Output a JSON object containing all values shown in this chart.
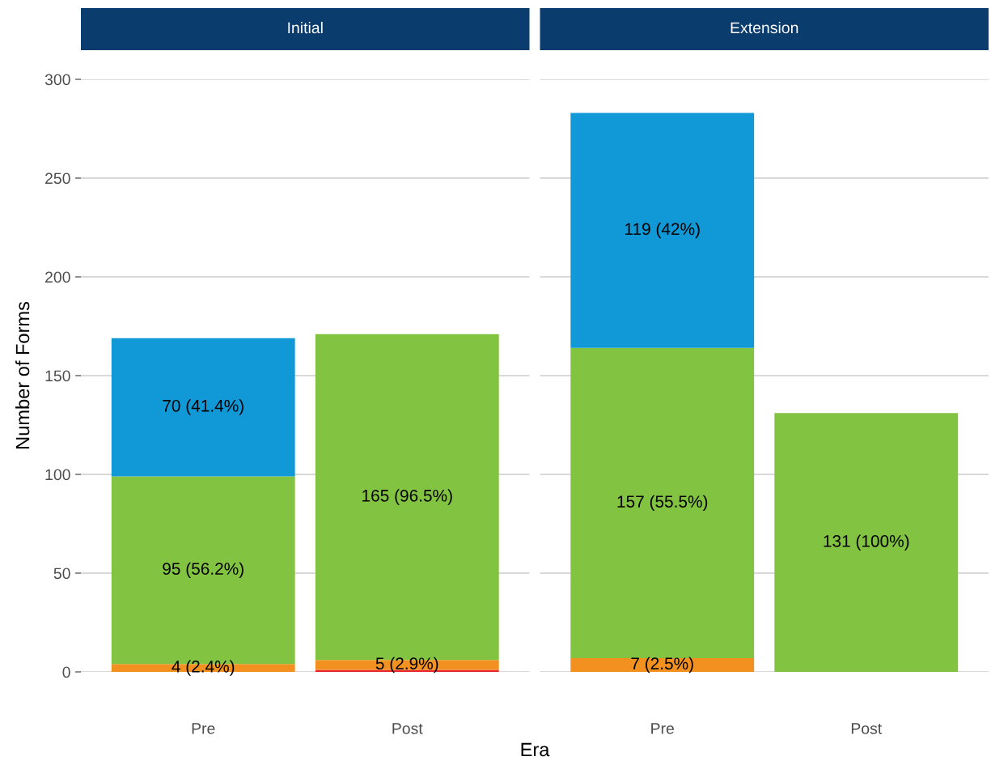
{
  "chart_data": [
    {
      "type": "bar",
      "title": "Initial",
      "ylabel": "Number of Forms",
      "xlabel": "Era",
      "categories": [
        "Pre",
        "Post"
      ],
      "stacked": true,
      "ylim": [
        0,
        300
      ],
      "yticks": [
        0,
        50,
        100,
        150,
        200,
        250,
        300
      ],
      "grid": "y",
      "legend": false,
      "series": [
        {
          "color": "#e8262b",
          "values": [
            null,
            1
          ],
          "value_labels": [
            null,
            null
          ]
        },
        {
          "color": "#f39120",
          "values": [
            4,
            5
          ],
          "value_labels": [
            "4 (2.4%)",
            "5 (2.9%)"
          ]
        },
        {
          "color": "#82c341",
          "values": [
            95,
            165
          ],
          "value_labels": [
            "95 (56.2%)",
            "165 (96.5%)"
          ]
        },
        {
          "color": "#1198d6",
          "values": [
            70,
            null
          ],
          "value_labels": [
            "70 (41.4%)",
            null
          ]
        }
      ]
    },
    {
      "type": "bar",
      "title": "Extension",
      "categories": [
        "Pre",
        "Post"
      ],
      "stacked": true,
      "ylim": [
        0,
        300
      ],
      "yticks": [
        0,
        50,
        100,
        150,
        200,
        250,
        300
      ],
      "grid": "y",
      "legend": false,
      "tick_labels": "x",
      "series": [
        {
          "color": "#f39120",
          "values": [
            7,
            null
          ],
          "value_labels": [
            "7 (2.5%)",
            null
          ]
        },
        {
          "color": "#82c341",
          "values": [
            157,
            131
          ],
          "value_labels": [
            "157 (55.5%)",
            "131 (100%)"
          ]
        },
        {
          "color": "#1198d6",
          "values": [
            119,
            null
          ],
          "value_labels": [
            "119 (42%)",
            null
          ]
        }
      ]
    }
  ]
}
